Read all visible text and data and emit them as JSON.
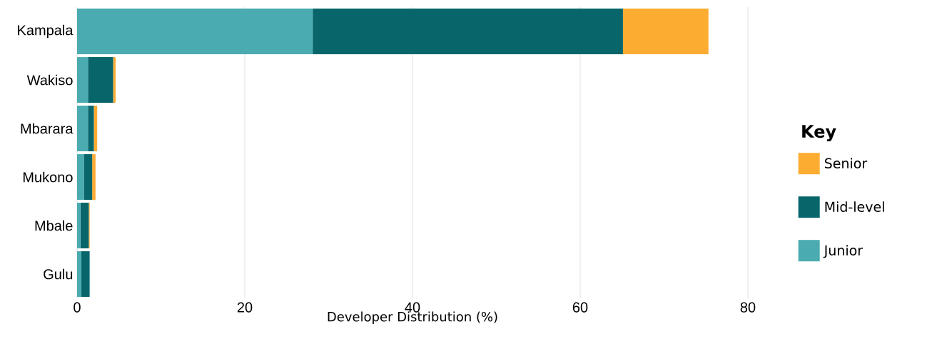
{
  "chart_data": {
    "type": "bar",
    "orientation": "horizontal",
    "stacked": true,
    "xlabel": "Developer Distribution (%)",
    "legend_title": "Key",
    "legend": "right",
    "grid": "x",
    "categories": [
      "Kampala",
      "Wakiso",
      "Mbarara",
      "Mukono",
      "Mbale",
      "Gulu"
    ],
    "xlim": [
      0,
      80
    ],
    "xticks": [
      0,
      20,
      40,
      60,
      80
    ],
    "series": [
      {
        "name": "Junior",
        "color": "#4aabb0",
        "values": [
          28.1,
          1.3,
          1.3,
          0.8,
          0.4,
          0.5
        ]
      },
      {
        "name": "Mid-level",
        "color": "#08666b",
        "values": [
          37.0,
          3.0,
          0.7,
          1.0,
          1.0,
          1.0
        ]
      },
      {
        "name": "Senior",
        "color": "#fdac32",
        "values": [
          10.2,
          0.3,
          0.4,
          0.4,
          0.1,
          0.0
        ]
      }
    ]
  }
}
